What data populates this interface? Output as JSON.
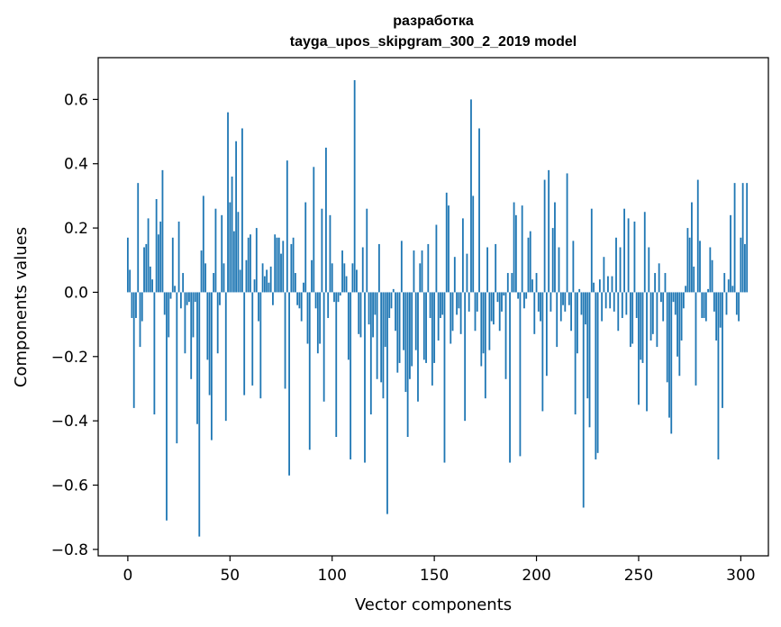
{
  "chart_data": {
    "type": "bar",
    "title": "разработка",
    "subtitle": "tayga_upos_skipgram_300_2_2019 model",
    "xlabel": "Vector components",
    "ylabel": "Components values",
    "bar_color": "#1f77b4",
    "grid": false,
    "legend": "none",
    "xlim": [
      -14.5,
      313.5
    ],
    "ylim": [
      -0.82,
      0.73
    ],
    "x_ticks": [
      0,
      50,
      100,
      150,
      200,
      250,
      300
    ],
    "x_tick_labels": [
      "0",
      "50",
      "100",
      "150",
      "200",
      "250",
      "300"
    ],
    "y_ticks": [
      0.6,
      0.4,
      0.2,
      0.0,
      -0.2,
      -0.4,
      -0.6,
      -0.8
    ],
    "y_tick_labels": [
      "0.6",
      "0.4",
      "0.2",
      "0.0",
      "−0.2",
      "−0.4",
      "−0.6",
      "−0.8"
    ],
    "values": [
      0.17,
      0.07,
      -0.08,
      -0.36,
      -0.08,
      0.34,
      -0.17,
      -0.09,
      0.14,
      0.15,
      0.23,
      0.08,
      0.04,
      -0.38,
      0.29,
      0.18,
      0.22,
      0.38,
      -0.07,
      -0.71,
      -0.14,
      -0.02,
      0.17,
      0.02,
      -0.47,
      0.22,
      -0.05,
      0.06,
      -0.19,
      -0.04,
      -0.03,
      -0.27,
      -0.14,
      -0.03,
      -0.41,
      -0.76,
      0.13,
      0.3,
      0.09,
      -0.21,
      -0.32,
      -0.46,
      0.06,
      0.26,
      -0.19,
      -0.04,
      0.24,
      0.09,
      -0.4,
      0.56,
      0.28,
      0.36,
      0.19,
      0.47,
      0.25,
      0.07,
      0.51,
      -0.32,
      0.1,
      0.17,
      0.18,
      -0.29,
      0.04,
      0.2,
      -0.09,
      -0.33,
      0.09,
      0.05,
      0.07,
      0.03,
      0.08,
      -0.04,
      0.18,
      0.17,
      0.17,
      0.12,
      0.16,
      -0.3,
      0.41,
      -0.57,
      0.15,
      0.17,
      0.06,
      -0.04,
      -0.05,
      -0.09,
      0.03,
      0.28,
      -0.16,
      -0.49,
      0.1,
      0.39,
      -0.05,
      -0.19,
      -0.16,
      0.26,
      -0.34,
      0.45,
      -0.08,
      0.24,
      0.09,
      -0.03,
      -0.45,
      -0.03,
      -0.01,
      0.13,
      0.09,
      0.05,
      -0.21,
      -0.52,
      0.09,
      0.66,
      0.07,
      -0.13,
      -0.14,
      0.14,
      -0.53,
      0.26,
      -0.1,
      -0.38,
      -0.14,
      -0.07,
      -0.27,
      0.15,
      -0.28,
      -0.33,
      -0.17,
      -0.69,
      -0.08,
      -0.05,
      0.01,
      -0.12,
      -0.25,
      -0.22,
      0.16,
      -0.18,
      -0.31,
      -0.45,
      -0.27,
      -0.23,
      0.13,
      -0.18,
      -0.34,
      0.09,
      0.13,
      -0.21,
      -0.22,
      0.15,
      -0.08,
      -0.29,
      -0.22,
      0.21,
      -0.15,
      -0.08,
      -0.07,
      -0.53,
      0.31,
      0.27,
      -0.16,
      -0.12,
      0.11,
      -0.07,
      -0.05,
      -0.13,
      0.23,
      -0.4,
      0.12,
      -0.06,
      0.6,
      0.3,
      -0.12,
      -0.06,
      0.51,
      -0.23,
      -0.19,
      -0.33,
      0.14,
      -0.18,
      -0.09,
      -0.1,
      0.15,
      -0.03,
      -0.12,
      -0.06,
      -0.01,
      -0.27,
      0.06,
      -0.53,
      0.06,
      0.28,
      0.24,
      -0.02,
      -0.51,
      0.27,
      -0.05,
      -0.02,
      0.17,
      0.19,
      0.04,
      -0.13,
      0.06,
      -0.06,
      -0.09,
      -0.37,
      0.35,
      -0.26,
      0.38,
      -0.06,
      0.2,
      0.28,
      -0.17,
      0.14,
      -0.09,
      -0.04,
      -0.06,
      0.37,
      -0.04,
      -0.12,
      0.16,
      -0.38,
      -0.19,
      0.01,
      -0.07,
      -0.67,
      -0.1,
      -0.33,
      -0.42,
      0.26,
      0.03,
      -0.52,
      -0.5,
      0.04,
      -0.09,
      0.11,
      -0.05,
      0.05,
      -0.05,
      0.05,
      -0.06,
      0.17,
      -0.12,
      0.14,
      -0.08,
      0.26,
      -0.07,
      0.23,
      -0.17,
      -0.16,
      0.22,
      -0.08,
      -0.35,
      -0.21,
      -0.22,
      0.25,
      -0.37,
      0.14,
      -0.15,
      -0.13,
      0.06,
      -0.17,
      0.09,
      -0.03,
      -0.09,
      0.06,
      -0.28,
      -0.39,
      -0.44,
      -0.03,
      -0.07,
      -0.2,
      -0.26,
      -0.15,
      -0.05,
      0.02,
      0.2,
      0.17,
      0.28,
      0.08,
      -0.29,
      0.35,
      0.16,
      -0.08,
      -0.08,
      -0.09,
      0.01,
      0.14,
      0.1,
      -0.06,
      -0.15,
      -0.52,
      -0.11,
      -0.36,
      0.06,
      -0.07,
      0.04,
      0.24,
      0.02,
      0.34,
      -0.07,
      -0.09,
      0.17,
      0.34,
      0.15,
      0.34
    ]
  }
}
